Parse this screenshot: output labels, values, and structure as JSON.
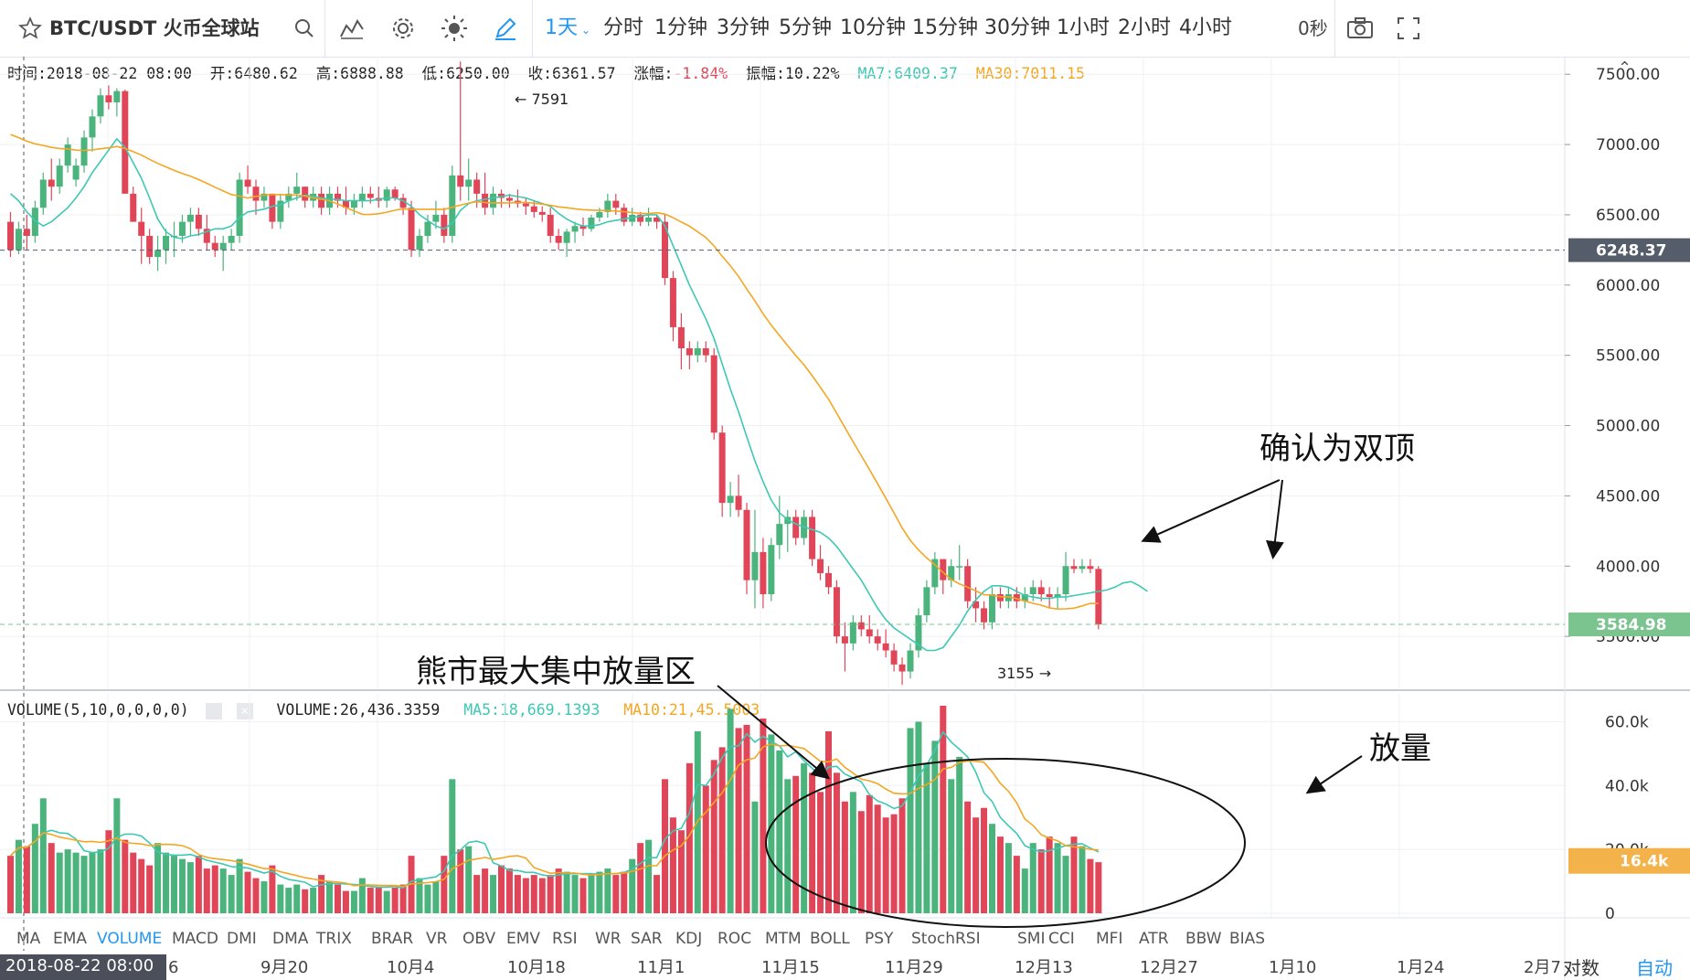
{
  "toolbar": {
    "symbol": "BTC/USDT 火币全球站",
    "intervals": [
      "1天",
      "分时",
      "1分钟",
      "3分钟",
      "5分钟",
      "10分钟",
      "15分钟",
      "30分钟",
      "1小时",
      "2小时",
      "4小时"
    ],
    "countdown": "0秒",
    "colors": {
      "active": "#2196f3"
    }
  },
  "info": {
    "time": "时间:2018-08-22 08:00",
    "open": "开:6480.62",
    "high": "高:6888.88",
    "low": "低:6250.00",
    "close": "收:6361.57",
    "change_label": "涨幅:",
    "change_value": "-1.84%",
    "amp": "振幅:10.22%",
    "ma7": "MA7:6409.37",
    "ma30": "MA30:7011.15"
  },
  "volume_info": {
    "title": "VOLUME(5,10,0,0,0,0)",
    "value": "VOLUME:26,436.3359",
    "ma5": "MA5:18,669.1393",
    "ma10_prefix": "MA10:21,4",
    "ma10_suffix": "5.5003"
  },
  "indicator_tabs": [
    "MA",
    "EMA",
    "VOLUME",
    "MACD",
    "DMI",
    "DMA",
    "TRIX",
    "BRAR",
    "VR",
    "OBV",
    "EMV",
    "RSI",
    "WR",
    "SAR",
    "KDJ",
    "ROC",
    "MTM",
    "BOLL",
    "PSY",
    "StochRSI",
    "SMI",
    "CCI",
    "MFI",
    "ATR",
    "BBW",
    "BIAS"
  ],
  "active_tab": "VOLUME",
  "x_axis": {
    "cursor_label": "2018-08-22 08:00",
    "cursor_tail": "6",
    "labels": [
      "9月20",
      "10月4",
      "10月18",
      "11月1",
      "11月15",
      "11月29",
      "12月13",
      "12月27",
      "1月10",
      "1月24",
      "2月7"
    ],
    "log_label": "对数",
    "auto_label": "自动"
  },
  "annotations": {
    "high_marker": "← 7591",
    "low_marker": "3155 →",
    "double_top": "确认为双顶",
    "bear_volume": "熊市最大集中放量区",
    "volume_surge": "放量"
  },
  "chart_data": {
    "type": "candlestick",
    "price_axis": {
      "ticks": [
        3500,
        4000,
        4500,
        5000,
        5500,
        6000,
        6500,
        7000,
        7500
      ],
      "tick_labels": [
        "3500.00",
        "4000.00",
        "4500.00",
        "5000.00",
        "5500.00",
        "6000.00",
        "6500.00",
        "7000.00",
        "7500.00"
      ],
      "range": [
        3130,
        7625
      ],
      "reference_lines": [
        {
          "value": 6248.37,
          "label": "6248.37",
          "color": "#555d6b"
        },
        {
          "value": 3584.98,
          "label": "3584.98",
          "color": "#7cc48f"
        }
      ]
    },
    "volume_axis": {
      "ticks": [
        0,
        20000,
        40000,
        60000
      ],
      "tick_labels": [
        "0",
        "20.0k",
        "40.0k",
        "60.0k"
      ],
      "range": [
        0,
        69000
      ],
      "current_label": "16.4k",
      "current_value": 16400
    },
    "colors": {
      "up": "#4bb37c",
      "down": "#e04658",
      "ma7": "#3ec8b4",
      "ma30": "#f4a623"
    },
    "candles": [
      [
        6450,
        6520,
        6200,
        6250
      ],
      [
        6250,
        6450,
        6220,
        6400
      ],
      [
        6400,
        6500,
        6250,
        6350
      ],
      [
        6350,
        6600,
        6300,
        6550
      ],
      [
        6550,
        6800,
        6500,
        6750
      ],
      [
        6750,
        6900,
        6600,
        6700
      ],
      [
        6700,
        6900,
        6650,
        6850
      ],
      [
        6850,
        7050,
        6800,
        7000
      ],
      [
        6750,
        6900,
        6700,
        6850
      ],
      [
        6850,
        7100,
        6800,
        7050
      ],
      [
        7050,
        7250,
        6950,
        7200
      ],
      [
        7200,
        7400,
        7150,
        7350
      ],
      [
        7350,
        7420,
        7250,
        7300
      ],
      [
        7300,
        7400,
        7200,
        7380
      ],
      [
        7380,
        7390,
        6650,
        6650
      ],
      [
        6650,
        6700,
        6450,
        6450
      ],
      [
        6450,
        6550,
        6150,
        6350
      ],
      [
        6350,
        6400,
        6150,
        6200
      ],
      [
        6200,
        6350,
        6100,
        6250
      ],
      [
        6250,
        6400,
        6150,
        6350
      ],
      [
        6350,
        6450,
        6200,
        6350
      ],
      [
        6350,
        6500,
        6300,
        6450
      ],
      [
        6450,
        6550,
        6350,
        6500
      ],
      [
        6500,
        6550,
        6350,
        6400
      ],
      [
        6400,
        6500,
        6250,
        6300
      ],
      [
        6300,
        6350,
        6200,
        6250
      ],
      [
        6250,
        6350,
        6100,
        6300
      ],
      [
        6300,
        6400,
        6250,
        6350
      ],
      [
        6350,
        6800,
        6300,
        6750
      ],
      [
        6750,
        6850,
        6650,
        6700
      ],
      [
        6700,
        6750,
        6500,
        6600
      ],
      [
        6600,
        6700,
        6550,
        6650
      ],
      [
        6650,
        6650,
        6400,
        6450
      ],
      [
        6450,
        6650,
        6400,
        6600
      ],
      [
        6600,
        6700,
        6550,
        6650
      ],
      [
        6650,
        6800,
        6600,
        6700
      ],
      [
        6700,
        6700,
        6550,
        6600
      ],
      [
        6600,
        6700,
        6550,
        6650
      ],
      [
        6650,
        6700,
        6500,
        6550
      ],
      [
        6550,
        6700,
        6500,
        6650
      ],
      [
        6650,
        6700,
        6550,
        6600
      ],
      [
        6600,
        6700,
        6500,
        6550
      ],
      [
        6550,
        6650,
        6500,
        6600
      ],
      [
        6600,
        6700,
        6550,
        6650
      ],
      [
        6650,
        6700,
        6580,
        6620
      ],
      [
        6620,
        6700,
        6550,
        6600
      ],
      [
        6600,
        6700,
        6550,
        6680
      ],
      [
        6680,
        6700,
        6600,
        6620
      ],
      [
        6620,
        6650,
        6500,
        6550
      ],
      [
        6550,
        6600,
        6200,
        6250
      ],
      [
        6250,
        6400,
        6200,
        6350
      ],
      [
        6350,
        6500,
        6300,
        6450
      ],
      [
        6450,
        6600,
        6400,
        6500
      ],
      [
        6500,
        6550,
        6300,
        6350
      ],
      [
        6350,
        6850,
        6300,
        6780
      ],
      [
        6780,
        7591,
        6600,
        6700
      ],
      [
        6700,
        6900,
        6600,
        6750
      ],
      [
        6750,
        6800,
        6550,
        6650
      ],
      [
        6650,
        6800,
        6500,
        6550
      ],
      [
        6550,
        6700,
        6500,
        6650
      ],
      [
        6650,
        6680,
        6550,
        6620
      ],
      [
        6620,
        6650,
        6550,
        6600
      ],
      [
        6600,
        6680,
        6550,
        6580
      ],
      [
        6580,
        6620,
        6500,
        6560
      ],
      [
        6560,
        6600,
        6480,
        6520
      ],
      [
        6520,
        6560,
        6450,
        6500
      ],
      [
        6500,
        6550,
        6300,
        6350
      ],
      [
        6350,
        6400,
        6250,
        6300
      ],
      [
        6300,
        6400,
        6200,
        6380
      ],
      [
        6380,
        6450,
        6300,
        6420
      ],
      [
        6420,
        6480,
        6350,
        6400
      ],
      [
        6400,
        6500,
        6380,
        6480
      ],
      [
        6480,
        6550,
        6450,
        6520
      ],
      [
        6520,
        6650,
        6480,
        6600
      ],
      [
        6600,
        6650,
        6500,
        6550
      ],
      [
        6550,
        6580,
        6420,
        6450
      ],
      [
        6450,
        6550,
        6420,
        6500
      ],
      [
        6500,
        6520,
        6420,
        6450
      ],
      [
        6450,
        6550,
        6420,
        6480
      ],
      [
        6480,
        6500,
        6400,
        6450
      ],
      [
        6450,
        6500,
        6000,
        6050
      ],
      [
        6050,
        6100,
        5600,
        5700
      ],
      [
        5700,
        5800,
        5400,
        5550
      ],
      [
        5550,
        5600,
        5400,
        5500
      ],
      [
        5500,
        5600,
        5450,
        5550
      ],
      [
        5550,
        5600,
        5450,
        5500
      ],
      [
        5500,
        5550,
        4900,
        4950
      ],
      [
        4950,
        5000,
        4350,
        4450
      ],
      [
        4450,
        4600,
        4350,
        4500
      ],
      [
        4500,
        4650,
        4350,
        4400
      ],
      [
        4400,
        4450,
        3800,
        3900
      ],
      [
        3900,
        4400,
        3700,
        4100
      ],
      [
        4100,
        4200,
        3700,
        3800
      ],
      [
        3800,
        4200,
        3750,
        4150
      ],
      [
        4150,
        4500,
        4050,
        4300
      ],
      [
        4300,
        4400,
        4100,
        4350
      ],
      [
        4350,
        4400,
        4150,
        4200
      ],
      [
        4200,
        4400,
        4150,
        4350
      ],
      [
        4350,
        4400,
        4000,
        4050
      ],
      [
        4050,
        4150,
        3900,
        3950
      ],
      [
        3950,
        4000,
        3800,
        3850
      ],
      [
        3850,
        3900,
        3450,
        3500
      ],
      [
        3500,
        3600,
        3250,
        3450
      ],
      [
        3450,
        3650,
        3400,
        3600
      ],
      [
        3600,
        3650,
        3500,
        3550
      ],
      [
        3550,
        3650,
        3450,
        3500
      ],
      [
        3500,
        3550,
        3400,
        3450
      ],
      [
        3450,
        3550,
        3350,
        3400
      ],
      [
        3400,
        3450,
        3250,
        3300
      ],
      [
        3300,
        3350,
        3155,
        3250
      ],
      [
        3250,
        3450,
        3200,
        3400
      ],
      [
        3400,
        3700,
        3350,
        3650
      ],
      [
        3650,
        3900,
        3600,
        3850
      ],
      [
        3850,
        4100,
        3800,
        4050
      ],
      [
        4050,
        4050,
        3800,
        3900
      ],
      [
        3900,
        4050,
        3850,
        4000
      ],
      [
        4000,
        4150,
        3900,
        4000
      ],
      [
        4000,
        4050,
        3700,
        3750
      ],
      [
        3750,
        3850,
        3600,
        3700
      ],
      [
        3700,
        3750,
        3550,
        3600
      ],
      [
        3600,
        3850,
        3550,
        3800
      ],
      [
        3800,
        3850,
        3700,
        3750
      ],
      [
        3750,
        3850,
        3700,
        3800
      ],
      [
        3800,
        3850,
        3700,
        3750
      ],
      [
        3750,
        3850,
        3700,
        3800
      ],
      [
        3800,
        3900,
        3750,
        3850
      ],
      [
        3850,
        3900,
        3750,
        3800
      ],
      [
        3800,
        3850,
        3700,
        3780
      ],
      [
        3780,
        3850,
        3700,
        3800
      ],
      [
        3800,
        4100,
        3750,
        4000
      ],
      [
        4000,
        4050,
        3950,
        3980
      ],
      [
        3980,
        4050,
        3950,
        4000
      ],
      [
        4000,
        4050,
        3950,
        3980
      ],
      [
        3980,
        4000,
        3550,
        3585
      ]
    ],
    "ma7": [
      6650,
      6600,
      6520,
      6460,
      6420,
      6450,
      6500,
      6550,
      6620,
      6700,
      6800,
      6880,
      6960,
      7040,
      6980,
      6870,
      6760,
      6620,
      6470,
      6380,
      6340,
      6330,
      6350,
      6360,
      6380,
      6400,
      6400,
      6420,
      6480,
      6520,
      6530,
      6540,
      6560,
      6570,
      6600,
      6620,
      6640,
      6630,
      6620,
      6610,
      6610,
      6600,
      6600,
      6600,
      6600,
      6610,
      6620,
      6620,
      6600,
      6560,
      6500,
      6460,
      6420,
      6400,
      6440,
      6530,
      6580,
      6600,
      6610,
      6620,
      6630,
      6640,
      6630,
      6620,
      6600,
      6580,
      6560,
      6510,
      6470,
      6440,
      6420,
      6420,
      6430,
      6450,
      6460,
      6470,
      6480,
      6490,
      6500,
      6500,
      6420,
      6280,
      6140,
      6000,
      5880,
      5760,
      5620,
      5440,
      5260,
      5100,
      4920,
      4750,
      4600,
      4470,
      4380,
      4330,
      4300,
      4280,
      4260,
      4240,
      4200,
      4140,
      4060,
      3980,
      3900,
      3800,
      3700,
      3620,
      3560,
      3520,
      3480,
      3440,
      3400,
      3400,
      3420,
      3500,
      3580,
      3680,
      3760,
      3820,
      3860,
      3860,
      3850,
      3820,
      3790,
      3780,
      3770,
      3770,
      3780,
      3780,
      3790,
      3800,
      3810,
      3820,
      3830,
      3850,
      3880,
      3890,
      3860,
      3820
    ]
  }
}
